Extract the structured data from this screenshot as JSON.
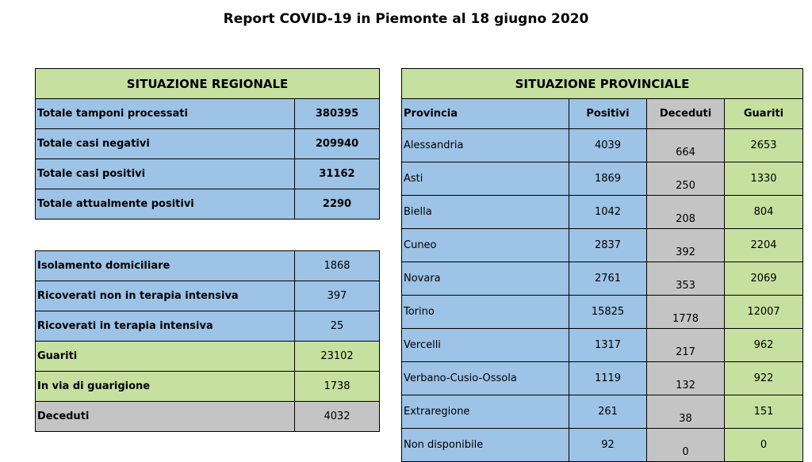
{
  "title": "Report COVID-19 in Piemonte al 18 giugno 2020",
  "regional": {
    "header": "SITUAZIONE REGIONALE",
    "summary": [
      {
        "label": "Totale tamponi processati",
        "value": "380395"
      },
      {
        "label": "Totale casi negativi",
        "value": "209940"
      },
      {
        "label": "Totale casi positivi",
        "value": "31162"
      },
      {
        "label": "Totale attualmente positivi",
        "value": "2290"
      }
    ],
    "details": [
      {
        "label": "Isolamento domiciliare",
        "value": "1868"
      },
      {
        "label": "Ricoverati non in terapia intensiva",
        "value": "397"
      },
      {
        "label": "Ricoverati in terapia intensiva",
        "value": "25"
      },
      {
        "label": "Guariti",
        "value": "23102"
      },
      {
        "label": "In via di guarigione",
        "value": "1738"
      },
      {
        "label": "Deceduti",
        "value": "4032"
      }
    ]
  },
  "provincial": {
    "header": "SITUAZIONE PROVINCIALE",
    "columns": [
      "Provincia",
      "Positivi",
      "Deceduti",
      "Guariti"
    ],
    "rows": [
      {
        "provincia": "Alessandria",
        "positivi": "4039",
        "deceduti": "664",
        "guariti": "2653"
      },
      {
        "provincia": "Asti",
        "positivi": "1869",
        "deceduti": "250",
        "guariti": "1330"
      },
      {
        "provincia": "Biella",
        "positivi": "1042",
        "deceduti": "208",
        "guariti": "804"
      },
      {
        "provincia": "Cuneo",
        "positivi": "2837",
        "deceduti": "392",
        "guariti": "2204"
      },
      {
        "provincia": "Novara",
        "positivi": "2761",
        "deceduti": "353",
        "guariti": "2069"
      },
      {
        "provincia": "Torino",
        "positivi": "15825",
        "deceduti": "1778",
        "guariti": "12007"
      },
      {
        "provincia": "Vercelli",
        "positivi": "1317",
        "deceduti": "217",
        "guariti": "962"
      },
      {
        "provincia": "Verbano-Cusio-Ossola",
        "positivi": "1119",
        "deceduti": "132",
        "guariti": "922"
      },
      {
        "provincia": "Extraregione",
        "positivi": "261",
        "deceduti": "38",
        "guariti": "151"
      },
      {
        "provincia": "Non disponibile",
        "positivi": "92",
        "deceduti": "0",
        "guariti": "0"
      }
    ]
  },
  "colors": {
    "green": "#c6e0a0",
    "blue": "#9dc3e6",
    "gray": "#c4c4c4"
  }
}
